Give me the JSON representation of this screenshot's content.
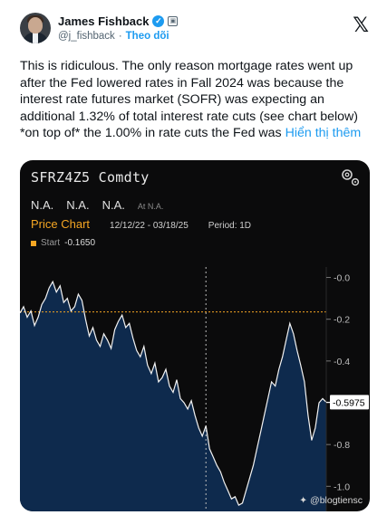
{
  "author": {
    "display_name": "James Fishback",
    "handle": "@j_fishback",
    "separator": "·",
    "follow_label": "Theo dõi"
  },
  "tweet": {
    "body": "This is ridiculous. The only reason mortgage rates went up after the Fed lowered rates in Fall 2024 was because the interest rate futures market (SOFR) was expecting an additional 1.32% of total interest rate cuts (see chart below) *on top of* the 1.00% in rate cuts the Fed was ",
    "show_more": "Hiển thị thêm"
  },
  "media": {
    "ticker": "SFRZ4Z5 Comdty",
    "na_values": [
      "N.A.",
      "N.A.",
      "N.A."
    ],
    "at_label": "At N.A.",
    "price_chart_label": "Price Chart",
    "date_range": "12/12/22 - 03/18/25",
    "period": "Period: 1D",
    "start_label": "Start",
    "start_value": "-0.1650",
    "watermark": "@blogtiensc"
  },
  "chart_data": {
    "type": "line",
    "title": "SFRZ4Z5 Comdty",
    "ylim": [
      -1.12,
      0.05
    ],
    "y_ticks": [
      -0.0,
      -0.2,
      -0.4,
      -0.6,
      -0.8,
      -1.0
    ],
    "y_tick_labels": [
      "-0.0",
      "-0.2",
      "-0.4",
      "-0.6",
      "-0.8",
      "-1.0"
    ],
    "last_value": -0.5975,
    "last_value_label": "-0.5975",
    "start_reference": -0.165,
    "x_range": [
      "12/12/22",
      "03/18/25"
    ],
    "series": [
      {
        "values": [
          -0.17,
          -0.14,
          -0.19,
          -0.16,
          -0.23,
          -0.19,
          -0.13,
          -0.1,
          -0.05,
          -0.02,
          -0.07,
          -0.04,
          -0.12,
          -0.1,
          -0.16,
          -0.14,
          -0.08,
          -0.11,
          -0.2,
          -0.28,
          -0.24,
          -0.3,
          -0.33,
          -0.27,
          -0.3,
          -0.34,
          -0.25,
          -0.21,
          -0.18,
          -0.24,
          -0.22,
          -0.29,
          -0.35,
          -0.38,
          -0.33,
          -0.42,
          -0.46,
          -0.41,
          -0.5,
          -0.48,
          -0.44,
          -0.52,
          -0.55,
          -0.49,
          -0.58,
          -0.6,
          -0.63,
          -0.59,
          -0.66,
          -0.72,
          -0.76,
          -0.71,
          -0.82,
          -0.86,
          -0.9,
          -0.93,
          -0.98,
          -1.02,
          -1.06,
          -1.05,
          -1.09,
          -1.08,
          -1.02,
          -0.96,
          -0.9,
          -0.82,
          -0.74,
          -0.66,
          -0.58,
          -0.5,
          -0.52,
          -0.44,
          -0.38,
          -0.3,
          -0.22,
          -0.27,
          -0.35,
          -0.42,
          -0.5,
          -0.66,
          -0.78,
          -0.72,
          -0.6,
          -0.58,
          -0.5975
        ]
      }
    ]
  },
  "colors": {
    "accent": "#1d9bf0",
    "chart_bg": "#0b0b0c",
    "area_fill": "#0e2a4d",
    "line": "#f2f2f2",
    "reference": "#f5a623"
  },
  "icons": [
    "verified-icon",
    "affiliate-icon",
    "x-logo-icon",
    "settings-icon",
    "watermark-icon"
  ]
}
